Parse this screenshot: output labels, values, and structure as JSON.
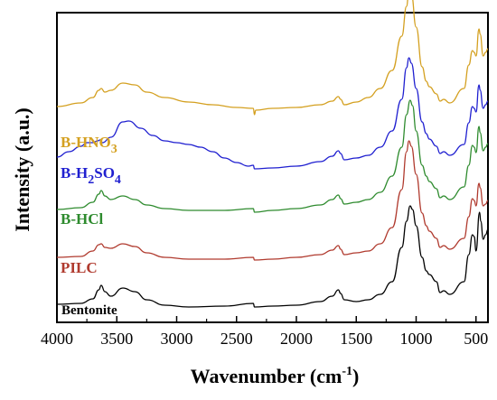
{
  "chart_data": {
    "type": "line",
    "xlabel": "Wavenumber (cm",
    "xlabel_sup": "-1",
    "xlabel_end": ")",
    "ylabel": "Intensity (a.u.)",
    "xlim": [
      4000,
      400
    ],
    "x_reversed": true,
    "x_ticks": [
      4000,
      3500,
      3000,
      2500,
      2000,
      1500,
      1000,
      500
    ],
    "y_ticks_shown": false,
    "grid": false,
    "series": [
      {
        "name": "Bentonite",
        "color": "#000000",
        "label_color": "#000000",
        "offset": 0,
        "points": [
          [
            4000,
            3
          ],
          [
            3800,
            4
          ],
          [
            3700,
            9
          ],
          [
            3650,
            19
          ],
          [
            3630,
            24
          ],
          [
            3600,
            17
          ],
          [
            3550,
            12
          ],
          [
            3450,
            21
          ],
          [
            3350,
            17
          ],
          [
            3250,
            8
          ],
          [
            3100,
            2
          ],
          [
            2900,
            0
          ],
          [
            2600,
            1
          ],
          [
            2360,
            4
          ],
          [
            2350,
            0
          ],
          [
            2200,
            1
          ],
          [
            2000,
            2
          ],
          [
            1800,
            6
          ],
          [
            1700,
            12
          ],
          [
            1650,
            19
          ],
          [
            1630,
            15
          ],
          [
            1600,
            8
          ],
          [
            1500,
            6
          ],
          [
            1400,
            8
          ],
          [
            1300,
            14
          ],
          [
            1200,
            28
          ],
          [
            1120,
            66
          ],
          [
            1080,
            95
          ],
          [
            1050,
            112
          ],
          [
            1030,
            108
          ],
          [
            1000,
            90
          ],
          [
            950,
            55
          ],
          [
            915,
            40
          ],
          [
            890,
            36
          ],
          [
            830,
            28
          ],
          [
            800,
            16
          ],
          [
            770,
            18
          ],
          [
            720,
            14
          ],
          [
            600,
            28
          ],
          [
            560,
            58
          ],
          [
            530,
            80
          ],
          [
            515,
            78
          ],
          [
            500,
            62
          ],
          [
            470,
            105
          ],
          [
            460,
            95
          ],
          [
            440,
            75
          ],
          [
            420,
            80
          ],
          [
            400,
            86
          ]
        ]
      },
      {
        "name": "PILC",
        "color": "#b03a2e",
        "label_color": "#b03a2e",
        "offset": 52,
        "points": [
          [
            4000,
            3
          ],
          [
            3800,
            4
          ],
          [
            3700,
            10
          ],
          [
            3650,
            17
          ],
          [
            3630,
            18
          ],
          [
            3600,
            14
          ],
          [
            3550,
            13
          ],
          [
            3450,
            18
          ],
          [
            3350,
            15
          ],
          [
            3250,
            8
          ],
          [
            3100,
            3
          ],
          [
            2900,
            1
          ],
          [
            2600,
            1
          ],
          [
            2360,
            3
          ],
          [
            2350,
            0
          ],
          [
            2200,
            1
          ],
          [
            2000,
            3
          ],
          [
            1800,
            6
          ],
          [
            1700,
            11
          ],
          [
            1650,
            16
          ],
          [
            1630,
            12
          ],
          [
            1600,
            6
          ],
          [
            1500,
            8
          ],
          [
            1400,
            10
          ],
          [
            1300,
            18
          ],
          [
            1200,
            36
          ],
          [
            1120,
            78
          ],
          [
            1080,
            120
          ],
          [
            1060,
            132
          ],
          [
            1040,
            126
          ],
          [
            1000,
            95
          ],
          [
            950,
            52
          ],
          [
            915,
            38
          ],
          [
            890,
            32
          ],
          [
            830,
            24
          ],
          [
            800,
            14
          ],
          [
            770,
            16
          ],
          [
            720,
            12
          ],
          [
            600,
            24
          ],
          [
            560,
            48
          ],
          [
            530,
            68
          ],
          [
            515,
            66
          ],
          [
            500,
            60
          ],
          [
            475,
            85
          ],
          [
            465,
            80
          ],
          [
            440,
            60
          ],
          [
            420,
            62
          ],
          [
            400,
            66
          ]
        ]
      },
      {
        "name": "B-HCl",
        "color": "#2e8b2e",
        "label_color": "#2e8b2e",
        "offset": 105,
        "points": [
          [
            4000,
            3
          ],
          [
            3800,
            5
          ],
          [
            3700,
            11
          ],
          [
            3650,
            20
          ],
          [
            3630,
            24
          ],
          [
            3600,
            18
          ],
          [
            3550,
            14
          ],
          [
            3450,
            18
          ],
          [
            3350,
            14
          ],
          [
            3250,
            8
          ],
          [
            3100,
            4
          ],
          [
            2900,
            2
          ],
          [
            2600,
            2
          ],
          [
            2360,
            4
          ],
          [
            2350,
            0
          ],
          [
            2200,
            2
          ],
          [
            2000,
            4
          ],
          [
            1800,
            8
          ],
          [
            1700,
            14
          ],
          [
            1650,
            19
          ],
          [
            1630,
            15
          ],
          [
            1600,
            9
          ],
          [
            1500,
            11
          ],
          [
            1400,
            14
          ],
          [
            1300,
            22
          ],
          [
            1200,
            40
          ],
          [
            1120,
            72
          ],
          [
            1080,
            108
          ],
          [
            1050,
            124
          ],
          [
            1030,
            118
          ],
          [
            1000,
            90
          ],
          [
            950,
            52
          ],
          [
            915,
            40
          ],
          [
            890,
            34
          ],
          [
            830,
            26
          ],
          [
            800,
            16
          ],
          [
            770,
            18
          ],
          [
            720,
            14
          ],
          [
            600,
            28
          ],
          [
            560,
            52
          ],
          [
            530,
            74
          ],
          [
            515,
            72
          ],
          [
            500,
            66
          ],
          [
            475,
            95
          ],
          [
            465,
            88
          ],
          [
            440,
            68
          ],
          [
            420,
            72
          ],
          [
            400,
            76
          ]
        ]
      },
      {
        "name": "B-H2SO4",
        "label_parts": [
          "B-H",
          "2",
          "SO",
          "4"
        ],
        "color": "#1f1fd0",
        "label_color": "#1f1fd0",
        "offset": 150,
        "points": [
          [
            4000,
            16
          ],
          [
            3900,
            22
          ],
          [
            3800,
            28
          ],
          [
            3750,
            32
          ],
          [
            3700,
            32
          ],
          [
            3660,
            34
          ],
          [
            3640,
            35
          ],
          [
            3620,
            32
          ],
          [
            3550,
            38
          ],
          [
            3450,
            55
          ],
          [
            3400,
            56
          ],
          [
            3300,
            48
          ],
          [
            3200,
            40
          ],
          [
            3100,
            34
          ],
          [
            3000,
            32
          ],
          [
            2900,
            30
          ],
          [
            2800,
            27
          ],
          [
            2700,
            22
          ],
          [
            2600,
            15
          ],
          [
            2500,
            10
          ],
          [
            2400,
            6
          ],
          [
            2360,
            7
          ],
          [
            2350,
            3
          ],
          [
            2200,
            4
          ],
          [
            2000,
            6
          ],
          [
            1800,
            11
          ],
          [
            1700,
            17
          ],
          [
            1650,
            23
          ],
          [
            1630,
            20
          ],
          [
            1600,
            13
          ],
          [
            1500,
            15
          ],
          [
            1400,
            18
          ],
          [
            1300,
            27
          ],
          [
            1200,
            45
          ],
          [
            1120,
            80
          ],
          [
            1080,
            115
          ],
          [
            1060,
            126
          ],
          [
            1040,
            120
          ],
          [
            1000,
            92
          ],
          [
            950,
            55
          ],
          [
            915,
            42
          ],
          [
            890,
            36
          ],
          [
            830,
            28
          ],
          [
            800,
            20
          ],
          [
            770,
            22
          ],
          [
            720,
            18
          ],
          [
            600,
            30
          ],
          [
            560,
            54
          ],
          [
            530,
            72
          ],
          [
            515,
            70
          ],
          [
            500,
            66
          ],
          [
            475,
            96
          ],
          [
            465,
            90
          ],
          [
            440,
            70
          ],
          [
            420,
            74
          ],
          [
            400,
            78
          ]
        ]
      },
      {
        "name": "B-HNO3",
        "label_parts": [
          "B-HNO",
          "3"
        ],
        "color": "#d4a020",
        "label_color": "#d4a020",
        "offset": 218,
        "points": [
          [
            4000,
            4
          ],
          [
            3800,
            8
          ],
          [
            3700,
            14
          ],
          [
            3650,
            22
          ],
          [
            3630,
            24
          ],
          [
            3600,
            20
          ],
          [
            3550,
            22
          ],
          [
            3450,
            30
          ],
          [
            3350,
            28
          ],
          [
            3250,
            20
          ],
          [
            3100,
            14
          ],
          [
            2900,
            9
          ],
          [
            2700,
            6
          ],
          [
            2500,
            3
          ],
          [
            2360,
            2
          ],
          [
            2350,
            -5
          ],
          [
            2340,
            0
          ],
          [
            2200,
            2
          ],
          [
            2000,
            3
          ],
          [
            1800,
            6
          ],
          [
            1700,
            10
          ],
          [
            1650,
            15
          ],
          [
            1630,
            12
          ],
          [
            1600,
            6
          ],
          [
            1500,
            9
          ],
          [
            1400,
            14
          ],
          [
            1300,
            24
          ],
          [
            1200,
            44
          ],
          [
            1120,
            82
          ],
          [
            1080,
            115
          ],
          [
            1060,
            132
          ],
          [
            1040,
            128
          ],
          [
            1000,
            92
          ],
          [
            950,
            48
          ],
          [
            915,
            32
          ],
          [
            890,
            26
          ],
          [
            830,
            18
          ],
          [
            800,
            10
          ],
          [
            770,
            12
          ],
          [
            720,
            8
          ],
          [
            600,
            24
          ],
          [
            560,
            50
          ],
          [
            530,
            66
          ],
          [
            515,
            64
          ],
          [
            500,
            60
          ],
          [
            475,
            90
          ],
          [
            465,
            84
          ],
          [
            440,
            60
          ],
          [
            420,
            64
          ],
          [
            400,
            68
          ]
        ]
      }
    ]
  }
}
